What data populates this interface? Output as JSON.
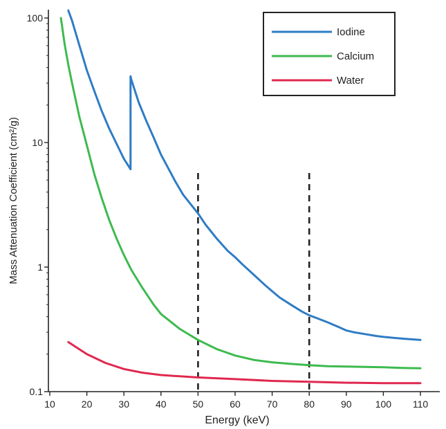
{
  "chart_data": {
    "type": "line",
    "title": "",
    "xlabel": "Energy (keV)",
    "ylabel": "Mass Attenuation Coefficient (cm²/g)",
    "xscale": "linear",
    "yscale": "log",
    "xlim": [
      10,
      115
    ],
    "ylim": [
      0.1,
      120
    ],
    "x_ticks": [
      10,
      20,
      30,
      40,
      50,
      60,
      70,
      80,
      90,
      100,
      110
    ],
    "y_ticks": [
      0.1,
      1,
      10,
      100
    ],
    "y_tick_labels": [
      "0.1",
      "1",
      "10",
      "100"
    ],
    "grid": false,
    "legend": {
      "placement": "top-right"
    },
    "reference_lines": [
      {
        "x": 50,
        "style": "dashed",
        "color": "#222222"
      },
      {
        "x": 80,
        "style": "dashed",
        "color": "#222222"
      }
    ],
    "series": [
      {
        "name": "Iodine",
        "color": "#2e7cc4",
        "x": [
          15,
          16,
          18,
          20,
          22,
          24,
          26,
          28,
          30,
          31.8,
          31.8,
          32,
          34,
          36,
          38,
          40,
          42,
          44,
          46,
          48,
          50,
          52,
          55,
          58,
          60,
          62,
          65,
          68,
          70,
          72,
          75,
          78,
          80,
          82,
          85,
          88,
          90,
          92,
          95,
          98,
          100,
          103,
          106,
          110
        ],
        "y": [
          115,
          95,
          60,
          38,
          26,
          18,
          13,
          9.8,
          7.4,
          6.1,
          34,
          32,
          21,
          15,
          11,
          8.0,
          6.2,
          4.8,
          3.8,
          3.2,
          2.7,
          2.2,
          1.7,
          1.35,
          1.2,
          1.05,
          0.87,
          0.72,
          0.64,
          0.57,
          0.5,
          0.44,
          0.41,
          0.39,
          0.36,
          0.33,
          0.31,
          0.3,
          0.29,
          0.28,
          0.275,
          0.27,
          0.265,
          0.26
        ]
      },
      {
        "name": "Calcium",
        "color": "#3dba4e",
        "x": [
          13,
          14,
          15,
          16,
          18,
          20,
          22,
          24,
          26,
          28,
          30,
          32,
          35,
          38,
          40,
          45,
          50,
          55,
          60,
          65,
          70,
          75,
          80,
          85,
          90,
          95,
          100,
          105,
          110
        ],
        "y": [
          100,
          62,
          42,
          30,
          16,
          9.5,
          5.6,
          3.6,
          2.4,
          1.7,
          1.25,
          0.95,
          0.68,
          0.5,
          0.42,
          0.32,
          0.26,
          0.22,
          0.195,
          0.18,
          0.172,
          0.167,
          0.163,
          0.16,
          0.159,
          0.158,
          0.157,
          0.155,
          0.154
        ]
      },
      {
        "name": "Water",
        "color": "#e0284f",
        "x": [
          15,
          20,
          25,
          30,
          35,
          40,
          50,
          60,
          70,
          80,
          90,
          100,
          110
        ],
        "y": [
          0.25,
          0.2,
          0.17,
          0.152,
          0.142,
          0.136,
          0.13,
          0.126,
          0.122,
          0.12,
          0.118,
          0.117,
          0.117
        ]
      }
    ]
  }
}
